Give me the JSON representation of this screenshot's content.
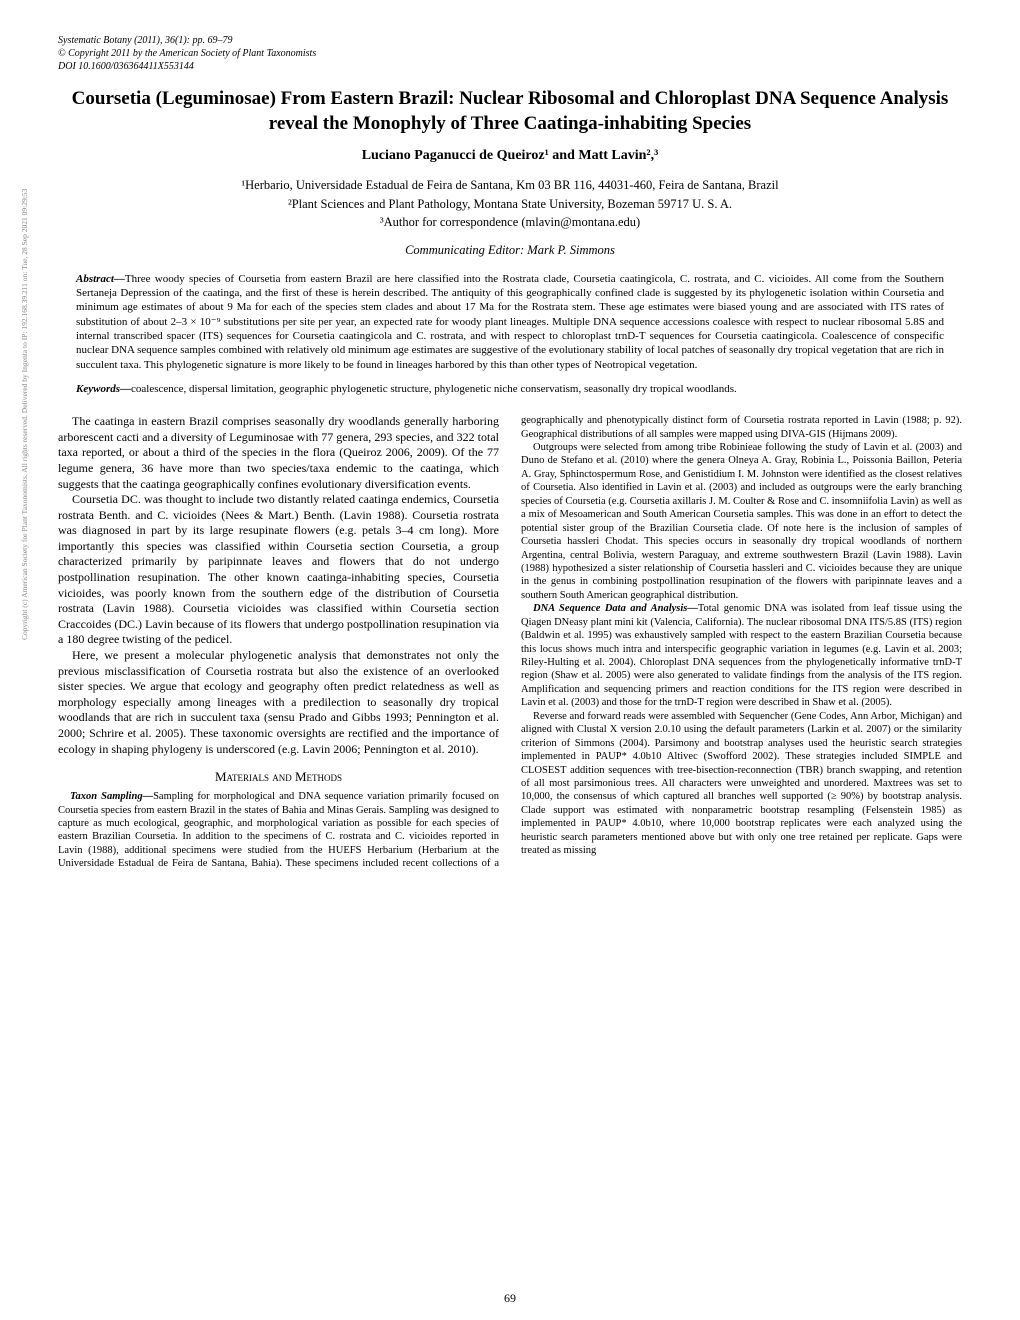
{
  "journal": {
    "line1": "Systematic Botany (2011), 36(1): pp. 69–79",
    "line2": "© Copyright 2011 by the American Society of Plant Taxonomists",
    "line3": "DOI 10.1600/036364411X553144"
  },
  "title": "Coursetia (Leguminosae) From Eastern Brazil: Nuclear Ribosomal and Chloroplast DNA Sequence Analysis reveal the Monophyly of Three Caatinga-inhabiting Species",
  "authors": "Luciano Paganucci de Queiroz¹ and Matt Lavin²,³",
  "affiliations": {
    "a1": "¹Herbario, Universidade Estadual de Feira de Santana, Km 03 BR 116, 44031-460, Feira de Santana, Brazil",
    "a2": "²Plant Sciences and Plant Pathology, Montana State University, Bozeman 59717 U. S. A.",
    "a3": "³Author for correspondence (mlavin@montana.edu)"
  },
  "editor": "Communicating Editor: Mark P. Simmons",
  "abstract": {
    "lead": "Abstract—",
    "text": "Three woody species of Coursetia from eastern Brazil are here classified into the Rostrata clade, Coursetia caatingicola, C. rostrata, and C. vicioides. All come from the Southern Sertaneja Depression of the caatinga, and the first of these is herein described. The antiquity of this geographically confined clade is suggested by its phylogenetic isolation within Coursetia and minimum age estimates of about 9 Ma for each of the species stem clades and about 17 Ma for the Rostrata stem. These age estimates were biased young and are associated with ITS rates of substitution of about 2–3 × 10⁻⁹ substitutions per site per year, an expected rate for woody plant lineages. Multiple DNA sequence accessions coalesce with respect to nuclear ribosomal 5.8S and internal transcribed spacer (ITS) sequences for Coursetia caatingicola and C. rostrata, and with respect to chloroplast trnD-T sequences for Coursetia caatingicola. Coalescence of conspecific nuclear DNA sequence samples combined with relatively old minimum age estimates are suggestive of the evolutionary stability of local patches of seasonally dry tropical vegetation that are rich in succulent taxa. This phylogenetic signature is more likely to be found in lineages harbored by this than other types of Neotropical vegetation."
  },
  "keywords": {
    "lead": "Keywords—",
    "text": "coalescence, dispersal limitation, geographic phylogenetic structure, phylogenetic niche conservatism, seasonally dry tropical woodlands."
  },
  "body": {
    "p1": "The caatinga in eastern Brazil comprises seasonally dry woodlands generally harboring arborescent cacti and a diversity of Leguminosae with 77 genera, 293 species, and 322 total taxa reported, or about a third of the species in the flora (Queiroz 2006, 2009). Of the 77 legume genera, 36 have more than two species/taxa endemic to the caatinga, which suggests that the caatinga geographically confines evolutionary diversification events.",
    "p2": "Coursetia DC. was thought to include two distantly related caatinga endemics, Coursetia rostrata Benth. and C. vicioides (Nees & Mart.) Benth. (Lavin 1988). Coursetia rostrata was diagnosed in part by its large resupinate flowers (e.g. petals 3–4 cm long). More importantly this species was classified within Coursetia section Coursetia, a group characterized primarily by paripinnate leaves and flowers that do not undergo postpollination resupination. The other known caatinga-inhabiting species, Coursetia vicioides, was poorly known from the southern edge of the distribution of Coursetia rostrata (Lavin 1988). Coursetia vicioides was classified within Coursetia section Craccoides (DC.) Lavin because of its flowers that undergo postpollination resupination via a 180 degree twisting of the pedicel.",
    "p3": "Here, we present a molecular phylogenetic analysis that demonstrates not only the previous misclassification of Coursetia rostrata but also the existence of an overlooked sister species. We argue that ecology and geography often predict relatedness as well as morphology especially among lineages with a predilection to seasonally dry tropical woodlands that are rich in succulent taxa (sensu Prado and Gibbs 1993; Pennington et al. 2000; Schrire et al. 2005). These taxonomic oversights are rectified and the importance of ecology in shaping phylogeny is underscored (e.g. Lavin 2006; Pennington et al. 2010).",
    "mm_head": "Materials and Methods",
    "mm1_lead": "Taxon Sampling—",
    "mm1": "Sampling for morphological and DNA sequence variation primarily focused on Coursetia species from eastern Brazil in the states of Bahia and Minas Gerais. Sampling was designed to capture as much ecological, geographic, and morphological variation as possible for each species of eastern Brazilian Coursetia. In addition to the specimens of C. rostrata and C. vicioides reported in Lavin (1988), additional specimens were studied from the HUEFS Herbarium (Herbarium at the Universidade Estadual de Feira de Santana, Bahia). These specimens included recent collections of a geographically and phenotypically distinct form of Coursetia rostrata reported in Lavin (1988; p. 92). Geographical distributions of all samples were mapped using DIVA-GIS (Hijmans 2009).",
    "mm2": "Outgroups were selected from among tribe Robinieae following the study of Lavin et al. (2003) and Duno de Stefano et al. (2010) where the genera Olneya A. Gray, Robinia L., Poissonia Baillon, Peteria A. Gray, Sphinctospermum Rose, and Genistidium I. M. Johnston were identified as the closest relatives of Coursetia. Also identified in Lavin et al. (2003) and included as outgroups were the early branching species of Coursetia (e.g. Coursetia axillaris J. M. Coulter & Rose and C. insomniifolia Lavin) as well as a mix of Mesoamerican and South American Coursetia samples. This was done in an effort to detect the potential sister group of the Brazilian Coursetia clade. Of note here is the inclusion of samples of Coursetia hassleri Chodat. This species occurs in seasonally dry tropical woodlands of northern Argentina, central Bolivia, western Paraguay, and extreme southwestern Brazil (Lavin 1988). Lavin (1988) hypothesized a sister relationship of Coursetia hassleri and C. vicioides because they are unique in the genus in combining postpollination resupination of the flowers with paripinnate leaves and a southern South American geographical distribution.",
    "mm3_lead": "DNA Sequence Data and Analysis—",
    "mm3": "Total genomic DNA was isolated from leaf tissue using the Qiagen DNeasy plant mini kit (Valencia, California). The nuclear ribosomal DNA ITS/5.8S (ITS) region (Baldwin et al. 1995) was exhaustively sampled with respect to the eastern Brazilian Coursetia because this locus shows much intra and interspecific geographic variation in legumes (e.g. Lavin et al. 2003; Riley-Hulting et al. 2004). Chloroplast DNA sequences from the phylogenetically informative trnD-T region (Shaw et al. 2005) were also generated to validate findings from the analysis of the ITS region. Amplification and sequencing primers and reaction conditions for the ITS region were described in Lavin et al. (2003) and those for the trnD-T region were described in Shaw et al. (2005).",
    "mm4": "Reverse and forward reads were assembled with Sequencher (Gene Codes, Ann Arbor, Michigan) and aligned with Clustal X version 2.0.10 using the default parameters (Larkin et al. 2007) or the similarity criterion of Simmons (2004). Parsimony and bootstrap analyses used the heuristic search strategies implemented in PAUP* 4.0b10 Altivec (Swofford 2002). These strategies included SIMPLE and CLOSEST addition sequences with tree-bisection-reconnection (TBR) branch swapping, and retention of all most parsimonious trees. All characters were unweighted and unordered. Maxtrees was set to 10,000, the consensus of which captured all branches well supported (≥ 90%) by bootstrap analysis. Clade support was estimated with nonparametric bootstrap resampling (Felsenstein 1985) as implemented in PAUP* 4.0b10, where 10,000 bootstrap replicates were each analyzed using the heuristic search parameters mentioned above but with only one tree retained per replicate. Gaps were treated as missing"
  },
  "pagenum": "69",
  "sidetext": "Copyright (c) American Society for Plant Taxonomists. All rights reserved.\nDelivered by Ingenta to IP: 192.168.39.211 on: Tue, 28 Sep 2021 09:29:53"
}
